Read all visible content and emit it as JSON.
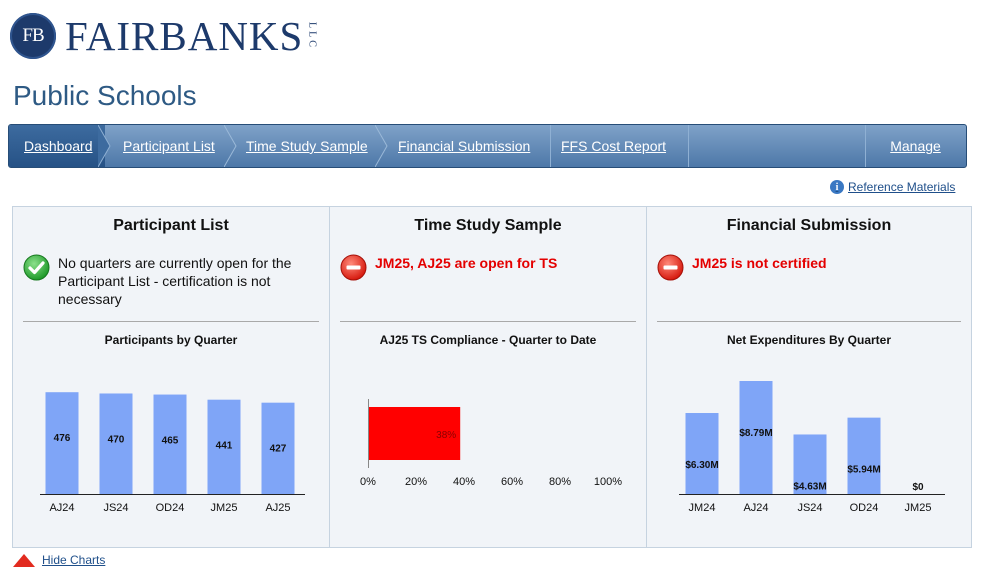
{
  "logo": {
    "seal": "FB",
    "name": "FAIRBANKS",
    "suffix": "LLC"
  },
  "page_title": "Public Schools",
  "nav": {
    "items": [
      {
        "label": "Dashboard",
        "name": "nav-dashboard",
        "active": true
      },
      {
        "label": "Participant List",
        "name": "nav-participant-list"
      },
      {
        "label": "Time Study Sample",
        "name": "nav-time-study-sample"
      },
      {
        "label": "Financial Submission",
        "name": "nav-financial-submission"
      },
      {
        "label": "FFS Cost Report",
        "name": "nav-ffs-cost-report"
      },
      {
        "label": "",
        "name": "nav-spacer"
      },
      {
        "label": "Manage",
        "name": "nav-manage"
      }
    ]
  },
  "reference_link": {
    "icon": "i",
    "label": "Reference Materials"
  },
  "panels": [
    {
      "title": "Participant List",
      "status": {
        "icon": "check-icon",
        "text": "No quarters are currently open for the Participant List - certification is not necessary",
        "severity": "ok"
      },
      "chart_title": "Participants by Quarter"
    },
    {
      "title": "Time Study Sample",
      "status": {
        "icon": "no-entry-icon",
        "text": "JM25, AJ25 are open for TS",
        "severity": "bad"
      },
      "chart_title": "AJ25 TS Compliance - Quarter to Date"
    },
    {
      "title": "Financial Submission",
      "status": {
        "icon": "no-entry-icon",
        "text": "JM25 is not certified",
        "severity": "bad"
      },
      "chart_title": "Net Expenditures By Quarter"
    }
  ],
  "chart_data": [
    {
      "type": "bar",
      "title": "Participants by Quarter",
      "categories": [
        "AJ24",
        "JS24",
        "OD24",
        "JM25",
        "AJ25"
      ],
      "values": [
        476,
        470,
        465,
        441,
        427
      ],
      "labels": [
        "476",
        "470",
        "465",
        "441",
        "427"
      ],
      "color": "#7fa5f7",
      "ylim": [
        0,
        505
      ]
    },
    {
      "type": "bar",
      "orientation": "horizontal",
      "title": "AJ25 TS Compliance - Quarter to Date",
      "categories": [
        ""
      ],
      "values": [
        38
      ],
      "labels": [
        "38%"
      ],
      "color": "#ff0000",
      "xlim": [
        0,
        100
      ],
      "xticks": [
        "0%",
        "20%",
        "40%",
        "60%",
        "80%",
        "100%"
      ]
    },
    {
      "type": "bar",
      "title": "Net Expenditures By Quarter",
      "categories": [
        "JM24",
        "AJ24",
        "JS24",
        "OD24",
        "JM25"
      ],
      "values": [
        6.3,
        8.79,
        4.63,
        5.94,
        0
      ],
      "labels": [
        "$6.30M",
        "$8.79M",
        "$4.63M",
        "$5.94M",
        "$0"
      ],
      "color": "#7fa5f7",
      "ylim": [
        0,
        8.79
      ]
    }
  ],
  "hide_charts": {
    "label": "Hide Charts"
  }
}
